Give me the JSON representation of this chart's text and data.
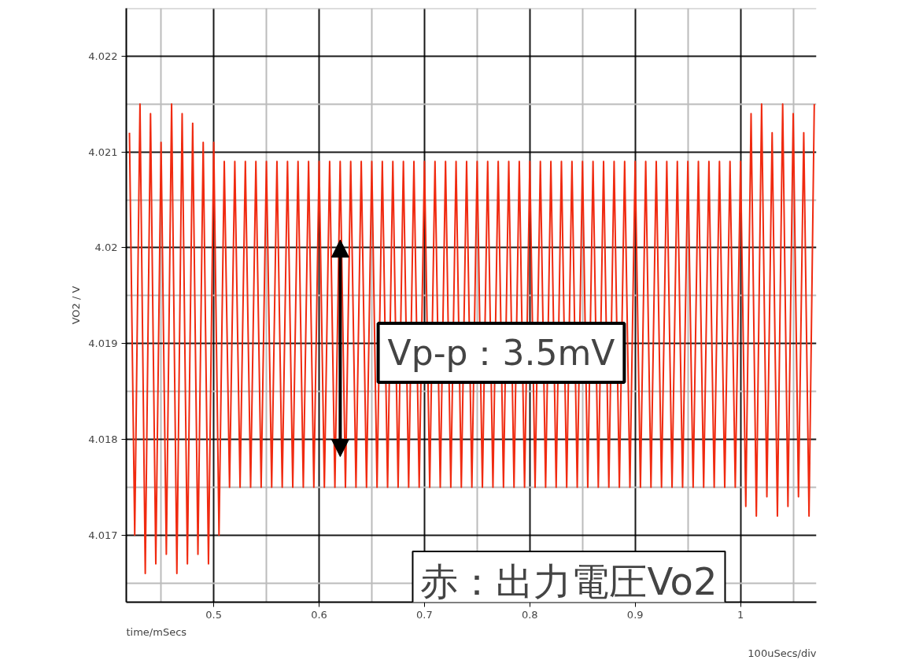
{
  "chart_data": {
    "type": "line",
    "xlabel": "time/mSecs",
    "ylabel": "VO2 / V",
    "annotations": [
      "100uSecs/div",
      "Vp-p：3.5mV",
      "赤：出力電圧Vo2"
    ],
    "xlim": [
      0.417,
      1.072
    ],
    "ylim": [
      4.0163,
      4.0225
    ],
    "xticks": [
      0.5,
      0.6,
      0.7,
      0.8,
      0.9,
      1
    ],
    "yticks": [
      4.017,
      4.018,
      4.019,
      4.02,
      4.021,
      4.022
    ],
    "grid": true,
    "series": [
      {
        "color": "#f02a10",
        "x": [
          0.42,
          0.425,
          0.43,
          0.435,
          0.44,
          0.445,
          0.45,
          0.455,
          0.46,
          0.465,
          0.47,
          0.475,
          0.48,
          0.485,
          0.49,
          0.495,
          0.5,
          0.505,
          0.51,
          0.515,
          0.52,
          0.525,
          0.53,
          0.535,
          0.54,
          0.545,
          0.55,
          0.555,
          0.56,
          0.565,
          0.57,
          0.575,
          0.58,
          0.585,
          0.59,
          0.595,
          0.6,
          0.605,
          0.61,
          0.615,
          0.62,
          0.625,
          0.63,
          0.635,
          0.64,
          0.645,
          0.65,
          0.655,
          0.66,
          0.665,
          0.67,
          0.675,
          0.68,
          0.685,
          0.69,
          0.695,
          0.7,
          0.705,
          0.71,
          0.715,
          0.72,
          0.725,
          0.73,
          0.735,
          0.74,
          0.745,
          0.75,
          0.755,
          0.76,
          0.765,
          0.77,
          0.775,
          0.78,
          0.785,
          0.79,
          0.795,
          0.8,
          0.805,
          0.81,
          0.815,
          0.82,
          0.825,
          0.83,
          0.835,
          0.84,
          0.845,
          0.85,
          0.855,
          0.86,
          0.865,
          0.87,
          0.875,
          0.88,
          0.885,
          0.89,
          0.895,
          0.9,
          0.905,
          0.91,
          0.915,
          0.92,
          0.925,
          0.93,
          0.935,
          0.94,
          0.945,
          0.95,
          0.955,
          0.96,
          0.965,
          0.97,
          0.975,
          0.98,
          0.985,
          0.99,
          0.995,
          1.0,
          1.005,
          1.01,
          1.015,
          1.02,
          1.025,
          1.03,
          1.035,
          1.04,
          1.045,
          1.05,
          1.055,
          1.06,
          1.065,
          1.07
        ],
        "values": [
          4.0212,
          4.017,
          4.0215,
          4.0166,
          4.0214,
          4.0167,
          4.0211,
          4.0168,
          4.0215,
          4.0166,
          4.0214,
          4.0167,
          4.0213,
          4.0168,
          4.0211,
          4.0167,
          4.0211,
          4.017,
          4.0209,
          4.0175,
          4.0209,
          4.0175,
          4.0209,
          4.0175,
          4.0209,
          4.0175,
          4.0209,
          4.0175,
          4.0209,
          4.0175,
          4.0209,
          4.0175,
          4.0209,
          4.0175,
          4.0209,
          4.0175,
          4.0209,
          4.0175,
          4.0209,
          4.0175,
          4.0209,
          4.0175,
          4.0209,
          4.0175,
          4.0209,
          4.0175,
          4.0209,
          4.0175,
          4.0209,
          4.0175,
          4.0209,
          4.0175,
          4.0209,
          4.0175,
          4.0209,
          4.0175,
          4.0209,
          4.0175,
          4.0209,
          4.0175,
          4.0209,
          4.0175,
          4.0209,
          4.0175,
          4.0209,
          4.0175,
          4.0209,
          4.0175,
          4.0209,
          4.0175,
          4.0209,
          4.0175,
          4.0209,
          4.0175,
          4.0209,
          4.0175,
          4.0209,
          4.0175,
          4.0209,
          4.0175,
          4.0209,
          4.0175,
          4.0209,
          4.0175,
          4.0209,
          4.0175,
          4.0209,
          4.0175,
          4.0209,
          4.0175,
          4.0209,
          4.0175,
          4.0209,
          4.0175,
          4.0209,
          4.0175,
          4.0209,
          4.0175,
          4.0209,
          4.0175,
          4.0209,
          4.0175,
          4.0209,
          4.0175,
          4.0209,
          4.0175,
          4.0209,
          4.0175,
          4.0209,
          4.0175,
          4.0209,
          4.0175,
          4.0209,
          4.0175,
          4.0209,
          4.0175,
          4.0209,
          4.0173,
          4.0214,
          4.0172,
          4.0215,
          4.0174,
          4.0212,
          4.0172,
          4.0215,
          4.0173,
          4.0214,
          4.0174,
          4.0212,
          4.0172,
          4.0215
        ]
      }
    ]
  }
}
